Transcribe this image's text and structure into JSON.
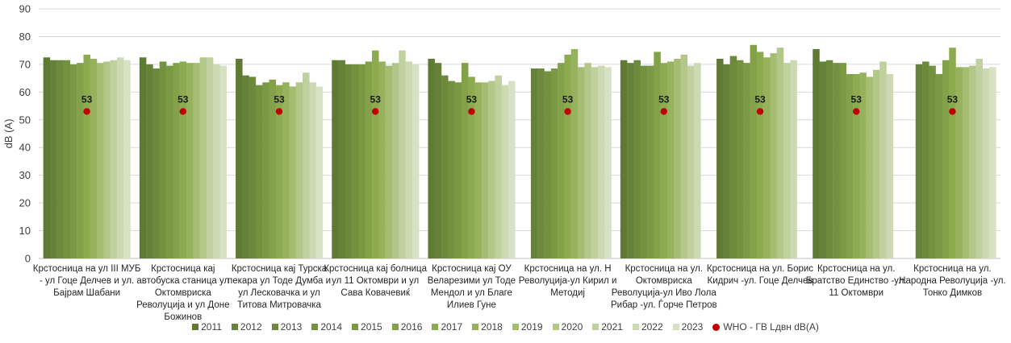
{
  "chart_data": {
    "type": "bar",
    "title": "",
    "xlabel": "",
    "ylabel": "dB (A)",
    "ylim": [
      0,
      90
    ],
    "yticks": [
      "0",
      "10",
      "20",
      "30",
      "40",
      "50",
      "60",
      "70",
      "80",
      "90"
    ],
    "grid": true,
    "legend_position": "bottom",
    "categories": [
      "Крстосница на ул III МУБ - ул Гоце Делчев и ул. Бајрам Шабани",
      "Крстосница кај автобуска станица ул Октомвриска Револуција и ул Доне Божинов",
      "Крстосница кај Турска пекара ул Тоде Думба и ул Лесковачка и ул Титова Митровачка",
      "Крстосница кај болница ул 11 Октомври и ул Сава Ковачевиќ",
      "Крстосница кај ОУ Веларезими ул Тоде Мендол и ул Благе Илиев Гуне",
      "Крстосница на ул. Н Револуција-ул Кирил и Методиј",
      "Крстосница на ул. Октомвриска Револуција-ул Иво Лола Рибар -ул. Ѓорче Петров",
      "Крстосница на ул. Борис Кидрич -ул. Гоце Делчев",
      "Крстосница на ул. Братство Единство -ул. 11 Октомври",
      "Крстосница на ул. Народна Револуција -ул. Тонко Димков"
    ],
    "category_lines": [
      [
        "Крстосница на ул III МУБ",
        "- ул Гоце Делчев и ул.",
        "Бајрам Шабани"
      ],
      [
        "Крстосница кај",
        "автобуска станица ул",
        "Октомвриска",
        "Револуција и ул Доне",
        "Божинов"
      ],
      [
        "Крстосница кај Турска",
        "пекара ул Тоде Думба и",
        "ул Лесковачка и ул",
        "Титова Митровачка"
      ],
      [
        "Крстосница кај болница",
        "ул 11 Октомври и ул",
        "Сава Ковачевиќ"
      ],
      [
        "Крстосница кај ОУ",
        "Веларезими ул Тоде",
        "Мендол и ул Благе",
        "Илиев Гуне"
      ],
      [
        "Крстосница на ул. Н",
        "Револуција-ул Кирил и",
        "Методиј"
      ],
      [
        "Крстосница на ул.",
        "Октомвриска",
        "Револуција-ул Иво Лола",
        "Рибар -ул. Ѓорче Петров"
      ],
      [
        "Крстосница на ул. Борис",
        "Кидрич -ул. Гоце Делчев"
      ],
      [
        "Крстосница на ул.",
        "Братство Единство -ул.",
        "11 Октомври"
      ],
      [
        "Крстосница на ул.",
        "Народна Револуција -ул.",
        "Тонко Димков"
      ]
    ],
    "series": [
      {
        "name": "2011",
        "color": "#5f7a32",
        "values": [
          72.5,
          72.5,
          72,
          71.5,
          72,
          null,
          71.5,
          72,
          75.5,
          null
        ]
      },
      {
        "name": "2012",
        "color": "#66823a",
        "values": [
          71.5,
          70,
          66,
          71.5,
          70.5,
          68.5,
          70.5,
          70,
          71,
          70
        ]
      },
      {
        "name": "2013",
        "color": "#6d8a3c",
        "values": [
          71.5,
          68.5,
          65.5,
          70,
          66,
          68.5,
          71.5,
          73,
          71.5,
          71
        ]
      },
      {
        "name": "2014",
        "color": "#749140",
        "values": [
          71.5,
          71,
          62.5,
          70,
          64,
          67.5,
          69.5,
          71.5,
          70.5,
          69.5
        ]
      },
      {
        "name": "2015",
        "color": "#7b9944",
        "values": [
          70,
          69.5,
          63.5,
          70,
          63.5,
          68.5,
          69.5,
          70.5,
          70.5,
          66.5
        ]
      },
      {
        "name": "2016",
        "color": "#83a148",
        "values": [
          70.5,
          70.5,
          64.5,
          71,
          70.5,
          70.5,
          74.5,
          77,
          66.5,
          71.5
        ]
      },
      {
        "name": "2017",
        "color": "#8bab4e",
        "values": [
          73.5,
          71,
          62.5,
          75,
          65.5,
          73.5,
          70.5,
          74.5,
          66.5,
          76
        ]
      },
      {
        "name": "2018",
        "color": "#97b25c",
        "values": [
          72,
          70.5,
          63.5,
          71,
          63.5,
          75.5,
          71,
          72.5,
          67,
          69
        ]
      },
      {
        "name": "2019",
        "color": "#a5bd72",
        "values": [
          70.5,
          70.5,
          62,
          69.5,
          63.5,
          69,
          72,
          74,
          65.5,
          69
        ]
      },
      {
        "name": "2020",
        "color": "#b3c789",
        "values": [
          71,
          72.5,
          63.5,
          70.5,
          64,
          70.5,
          73.5,
          76,
          68,
          69.5
        ]
      },
      {
        "name": "2021",
        "color": "#c0d09f",
        "values": [
          71.5,
          72.5,
          67,
          75,
          66,
          69,
          69.5,
          70.5,
          71,
          72
        ]
      },
      {
        "name": "2022",
        "color": "#ccd9b3",
        "values": [
          72.5,
          70,
          63.5,
          71,
          62.5,
          69.5,
          70.5,
          71.5,
          66.5,
          68.5
        ]
      },
      {
        "name": "2023",
        "color": "#d7e1c4",
        "values": [
          71.5,
          69.5,
          62,
          70,
          64,
          69,
          null,
          null,
          null,
          69
        ]
      }
    ],
    "reference": {
      "name": "WHO - ГВ Lдвн dB(A)",
      "color": "#c00000",
      "values": [
        53,
        53,
        53,
        53,
        53,
        53,
        53,
        53,
        53,
        53
      ],
      "labels": [
        "53",
        "53",
        "53",
        "53",
        "53",
        "53",
        "53",
        "53",
        "53",
        "53"
      ]
    }
  }
}
